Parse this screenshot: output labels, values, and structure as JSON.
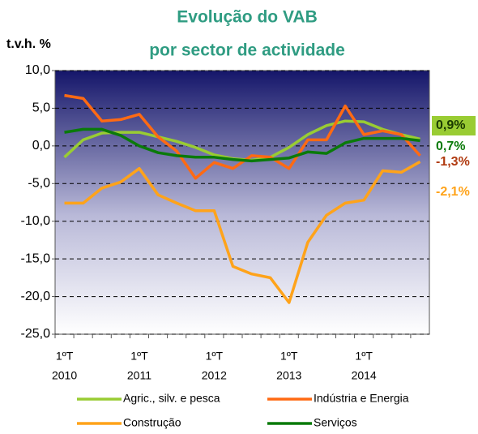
{
  "chart_data": {
    "type": "line",
    "title": [
      "Evolução do VAB",
      "por sector de actividade"
    ],
    "y_label": "t.v.h. %",
    "categories": [
      "1ºT",
      null,
      null,
      null,
      "1ºT",
      null,
      null,
      null,
      "1ºT",
      null,
      null,
      null,
      "1ºT",
      null,
      null,
      null,
      "1ºT",
      null,
      null,
      null
    ],
    "years": [
      "2010",
      "2011",
      "2012",
      "2013",
      "2014"
    ],
    "ylim": [
      -25,
      10
    ],
    "yticks": [
      {
        "value": 10,
        "label": "10,0"
      },
      {
        "value": 5,
        "label": "5,0"
      },
      {
        "value": 0,
        "label": "0,0"
      },
      {
        "value": -5,
        "label": "-5,0"
      },
      {
        "value": -10,
        "label": "-10,0"
      },
      {
        "value": -15,
        "label": "-15,0"
      },
      {
        "value": -20,
        "label": "-20,0"
      },
      {
        "value": -25,
        "label": "-25,0"
      }
    ],
    "grid": true,
    "series": [
      {
        "name": "Agric., silv. e pesca",
        "color": "#99cc33",
        "values": [
          -1.5,
          0.8,
          1.7,
          1.8,
          1.8,
          1.2,
          0.6,
          -0.2,
          -1.2,
          -1.7,
          -1.9,
          -1.5,
          -0.2,
          1.5,
          2.7,
          3.3,
          3.2,
          2.2,
          1.5,
          0.9
        ],
        "value_labels": [
          null,
          null,
          null,
          null,
          null,
          null,
          null,
          null,
          null,
          null,
          null,
          null,
          null,
          null,
          null,
          null,
          null,
          null,
          null,
          "0,9%"
        ]
      },
      {
        "name": "Indústria e Energia",
        "color": "#ff6a13",
        "values": [
          6.7,
          6.3,
          3.3,
          3.5,
          4.2,
          1.2,
          -0.7,
          -4.3,
          -2.2,
          -3.0,
          -1.3,
          -1.5,
          -3.0,
          0.8,
          0.8,
          5.3,
          1.5,
          2.0,
          1.5,
          -1.3
        ],
        "value_labels": [
          null,
          null,
          null,
          null,
          null,
          null,
          null,
          null,
          null,
          null,
          null,
          null,
          null,
          null,
          null,
          null,
          null,
          null,
          null,
          "-1,3%"
        ]
      },
      {
        "name": "Construção",
        "color": "#ffa31a",
        "values": [
          -7.6,
          -7.6,
          -5.6,
          -4.8,
          -3.0,
          -6.5,
          -7.6,
          -8.6,
          -8.6,
          -16.0,
          -17.0,
          -17.5,
          -20.8,
          -12.8,
          -9.2,
          -7.6,
          -7.2,
          -3.3,
          -3.5,
          -2.1
        ],
        "value_labels": [
          null,
          null,
          null,
          null,
          null,
          null,
          null,
          null,
          null,
          null,
          null,
          null,
          null,
          null,
          null,
          null,
          null,
          null,
          null,
          "-2,1%"
        ]
      },
      {
        "name": "Serviços",
        "color": "#0a7a0a",
        "values": [
          1.8,
          2.2,
          2.2,
          1.4,
          0.0,
          -0.9,
          -1.3,
          -1.5,
          -1.5,
          -1.8,
          -2.0,
          -1.8,
          -1.6,
          -0.8,
          -1.0,
          0.4,
          1.0,
          1.0,
          1.0,
          0.7
        ],
        "value_labels": [
          null,
          null,
          null,
          null,
          null,
          null,
          null,
          null,
          null,
          null,
          null,
          null,
          null,
          null,
          null,
          null,
          null,
          null,
          null,
          "0,7%"
        ]
      }
    ]
  }
}
